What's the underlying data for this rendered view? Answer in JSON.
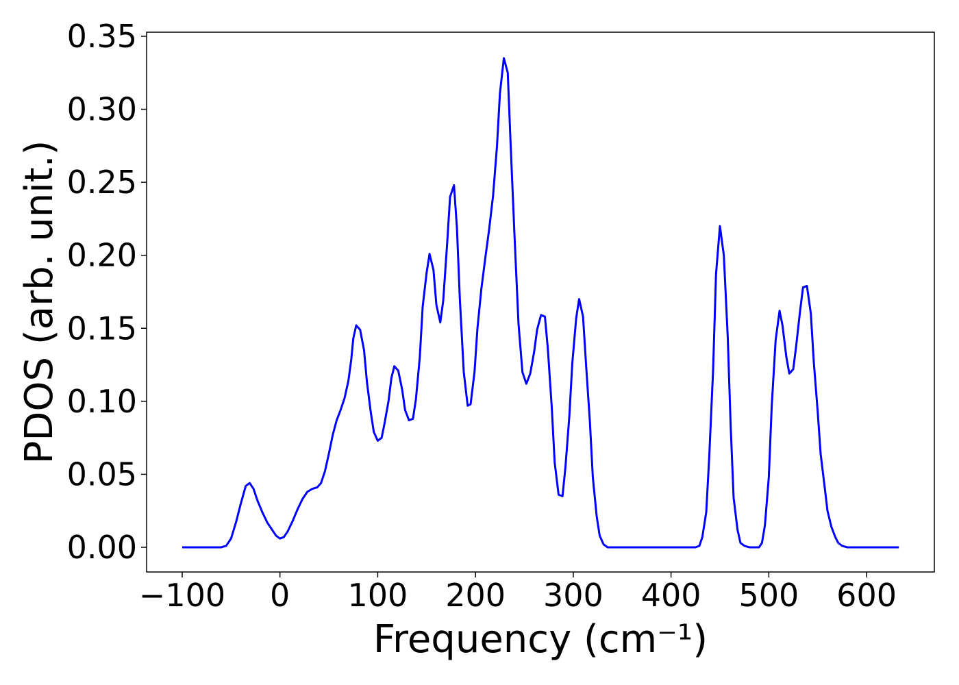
{
  "chart_data": {
    "type": "line",
    "x_label": "Frequency (cm⁻¹)",
    "y_label": "PDOS (arb. unit.)",
    "x": [
      -100,
      -60,
      -55,
      -50,
      -45,
      -40,
      -35,
      -31,
      -27,
      -23,
      -18,
      -13,
      -8,
      -4,
      0,
      4,
      8,
      13,
      18,
      23,
      28,
      33,
      38,
      42,
      46,
      50,
      54,
      58,
      62,
      66,
      70,
      73,
      75,
      78,
      82,
      86,
      89,
      93,
      96,
      100,
      104,
      107,
      111,
      114,
      117,
      121,
      125,
      128,
      132,
      136,
      139,
      143,
      146,
      150,
      153,
      157,
      160,
      164,
      167,
      171,
      174,
      178,
      181,
      184,
      188,
      192,
      195,
      199,
      202,
      206,
      210,
      214,
      218,
      222,
      225,
      229,
      233,
      236,
      240,
      244,
      248,
      252,
      256,
      260,
      263,
      267,
      271,
      274,
      278,
      281,
      285,
      289,
      292,
      296,
      299,
      303,
      306,
      310,
      313,
      317,
      320,
      324,
      327,
      331,
      335,
      340,
      425,
      429,
      432,
      436,
      439,
      443,
      446,
      450,
      454,
      458,
      461,
      464,
      468,
      471,
      475,
      480,
      490,
      493,
      496,
      500,
      503,
      507,
      511,
      514,
      518,
      521,
      525,
      528,
      532,
      535,
      539,
      543,
      546,
      550,
      553,
      557,
      560,
      564,
      568,
      571,
      575,
      580,
      633
    ],
    "series": [
      {
        "color": "#0000ff",
        "values": [
          0,
          0,
          0.001,
          0.006,
          0.017,
          0.03,
          0.042,
          0.044,
          0.04,
          0.032,
          0.024,
          0.017,
          0.012,
          0.008,
          0.006,
          0.007,
          0.011,
          0.018,
          0.026,
          0.033,
          0.038,
          0.04,
          0.041,
          0.044,
          0.052,
          0.064,
          0.077,
          0.087,
          0.094,
          0.102,
          0.114,
          0.129,
          0.143,
          0.152,
          0.149,
          0.135,
          0.113,
          0.092,
          0.079,
          0.073,
          0.075,
          0.085,
          0.1,
          0.116,
          0.124,
          0.121,
          0.108,
          0.094,
          0.087,
          0.088,
          0.101,
          0.13,
          0.165,
          0.188,
          0.201,
          0.19,
          0.166,
          0.154,
          0.169,
          0.208,
          0.24,
          0.248,
          0.219,
          0.17,
          0.12,
          0.097,
          0.098,
          0.12,
          0.15,
          0.177,
          0.198,
          0.218,
          0.241,
          0.275,
          0.311,
          0.335,
          0.325,
          0.275,
          0.212,
          0.153,
          0.12,
          0.112,
          0.119,
          0.134,
          0.149,
          0.159,
          0.158,
          0.136,
          0.096,
          0.058,
          0.036,
          0.035,
          0.055,
          0.09,
          0.126,
          0.157,
          0.17,
          0.158,
          0.126,
          0.086,
          0.048,
          0.021,
          0.008,
          0.002,
          0,
          0,
          0,
          0.001,
          0.007,
          0.024,
          0.061,
          0.121,
          0.187,
          0.22,
          0.2,
          0.144,
          0.083,
          0.034,
          0.012,
          0.003,
          0.001,
          0,
          0,
          0.003,
          0.015,
          0.048,
          0.097,
          0.142,
          0.162,
          0.152,
          0.13,
          0.119,
          0.122,
          0.138,
          0.162,
          0.178,
          0.179,
          0.16,
          0.127,
          0.093,
          0.064,
          0.042,
          0.025,
          0.014,
          0.007,
          0.003,
          0.001,
          0,
          0
        ]
      }
    ],
    "xlim": [
      -136.4,
      669.3
    ],
    "ylim": [
      -0.0169,
      0.3528
    ],
    "xticks": [
      {
        "value": -100,
        "label": "−100"
      },
      0,
      100,
      200,
      300,
      400,
      500,
      600
    ],
    "yticks": [
      {
        "value": 0,
        "label": "0.00"
      },
      {
        "value": 0.05,
        "label": "0.05"
      },
      {
        "value": 0.1,
        "label": "0.10"
      },
      {
        "value": 0.15,
        "label": "0.15"
      },
      {
        "value": 0.2,
        "label": "0.20"
      },
      {
        "value": 0.25,
        "label": "0.25"
      },
      {
        "value": 0.3,
        "label": "0.30"
      },
      {
        "value": 0.35,
        "label": "0.35"
      }
    ]
  }
}
